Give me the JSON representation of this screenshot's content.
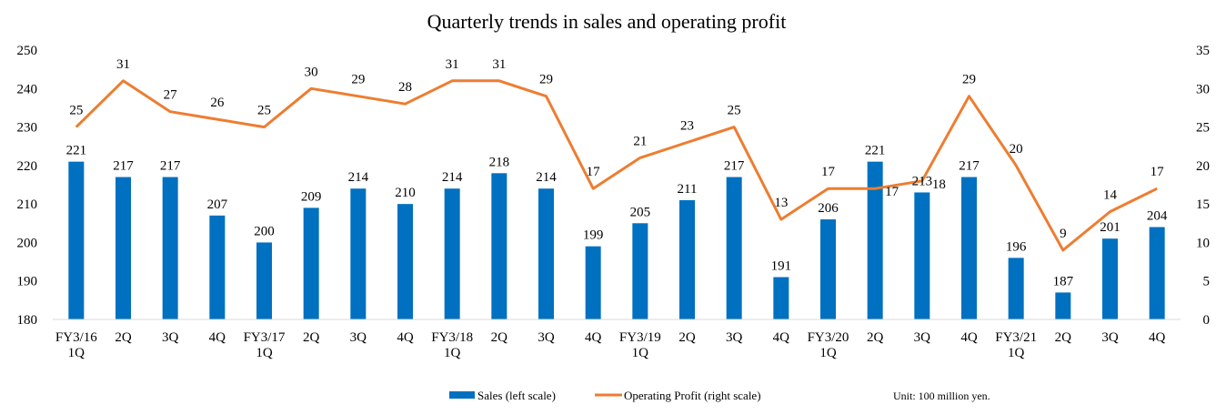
{
  "chart_data": {
    "type": "bar",
    "title": "Quarterly trends in sales and operating profit",
    "categories": [
      "FY3/16 1Q",
      "2Q",
      "3Q",
      "4Q",
      "FY3/17 1Q",
      "2Q",
      "3Q",
      "4Q",
      "FY3/18 1Q",
      "2Q",
      "3Q",
      "4Q",
      "FY3/19 1Q",
      "2Q",
      "3Q",
      "4Q",
      "FY3/20 1Q",
      "2Q",
      "3Q",
      "4Q",
      "FY3/21 1Q",
      "2Q",
      "3Q",
      "4Q"
    ],
    "category_lines": [
      [
        "FY3/16",
        "1Q"
      ],
      [
        "2Q"
      ],
      [
        "3Q"
      ],
      [
        "4Q"
      ],
      [
        "FY3/17",
        "1Q"
      ],
      [
        "2Q"
      ],
      [
        "3Q"
      ],
      [
        "4Q"
      ],
      [
        "FY3/18",
        "1Q"
      ],
      [
        "2Q"
      ],
      [
        "3Q"
      ],
      [
        "4Q"
      ],
      [
        "FY3/19",
        "1Q"
      ],
      [
        "2Q"
      ],
      [
        "3Q"
      ],
      [
        "4Q"
      ],
      [
        "FY3/20",
        "1Q"
      ],
      [
        "2Q"
      ],
      [
        "3Q"
      ],
      [
        "4Q"
      ],
      [
        "FY3/21",
        "1Q"
      ],
      [
        "2Q"
      ],
      [
        "3Q"
      ],
      [
        "4Q"
      ]
    ],
    "series": [
      {
        "name": "Sales (left scale)",
        "type": "bar",
        "axis": "left",
        "color": "#0070C0",
        "values": [
          221,
          217,
          217,
          207,
          200,
          209,
          214,
          210,
          214,
          218,
          214,
          199,
          205,
          211,
          217,
          191,
          206,
          221,
          213,
          217,
          196,
          187,
          201,
          204
        ]
      },
      {
        "name": "Operating Profit (right scale)",
        "type": "line",
        "axis": "right",
        "color": "#ED7D31",
        "values": [
          25,
          31,
          27,
          26,
          25,
          30,
          29,
          28,
          31,
          31,
          29,
          17,
          21,
          23,
          25,
          13,
          17,
          17,
          18,
          29,
          20,
          9,
          14,
          17
        ]
      }
    ],
    "y_left": {
      "min": 180,
      "max": 250,
      "ticks": [
        180,
        190,
        200,
        210,
        220,
        230,
        240,
        250
      ]
    },
    "y_right": {
      "min": 0,
      "max": 35,
      "ticks": [
        0,
        5,
        10,
        15,
        20,
        25,
        30,
        35
      ]
    },
    "grid": false,
    "legend_position": "bottom",
    "note": "Unit: 100 million yen."
  }
}
